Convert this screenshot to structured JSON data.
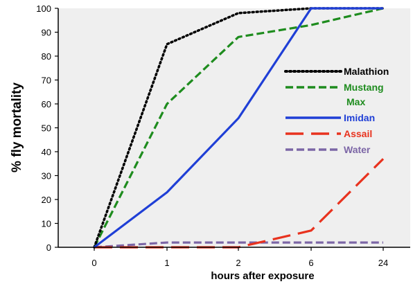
{
  "chart_data": {
    "type": "line",
    "categories": [
      "0",
      "1",
      "2",
      "6",
      "24"
    ],
    "xlabel": "hours after exposure",
    "ylabel": "% fly mortality",
    "ylim": [
      0,
      100
    ],
    "yticks": [
      0,
      10,
      20,
      30,
      40,
      50,
      60,
      70,
      80,
      90,
      100
    ],
    "grid": false,
    "legend_position": "right",
    "series": [
      {
        "name": "Malathion",
        "color": "#000000",
        "dash": "dotted",
        "values": [
          0,
          85,
          98,
          100,
          100
        ]
      },
      {
        "name": "Mustang Max",
        "color": "#1e8c1e",
        "dash": "dashed",
        "values": [
          0,
          60,
          88,
          93,
          100
        ]
      },
      {
        "name": "Imidan",
        "color": "#1f3fd6",
        "dash": "solid",
        "values": [
          0,
          23,
          54,
          100,
          100
        ]
      },
      {
        "name": "Assail",
        "color": "#e8321e",
        "dash": "longdash",
        "values": [
          0,
          0,
          0,
          7,
          37
        ]
      },
      {
        "name": "Water",
        "color": "#7c66a6",
        "dash": "dashed",
        "values": [
          0,
          2,
          2,
          2,
          2
        ]
      }
    ],
    "plot_background": "#efefef"
  }
}
